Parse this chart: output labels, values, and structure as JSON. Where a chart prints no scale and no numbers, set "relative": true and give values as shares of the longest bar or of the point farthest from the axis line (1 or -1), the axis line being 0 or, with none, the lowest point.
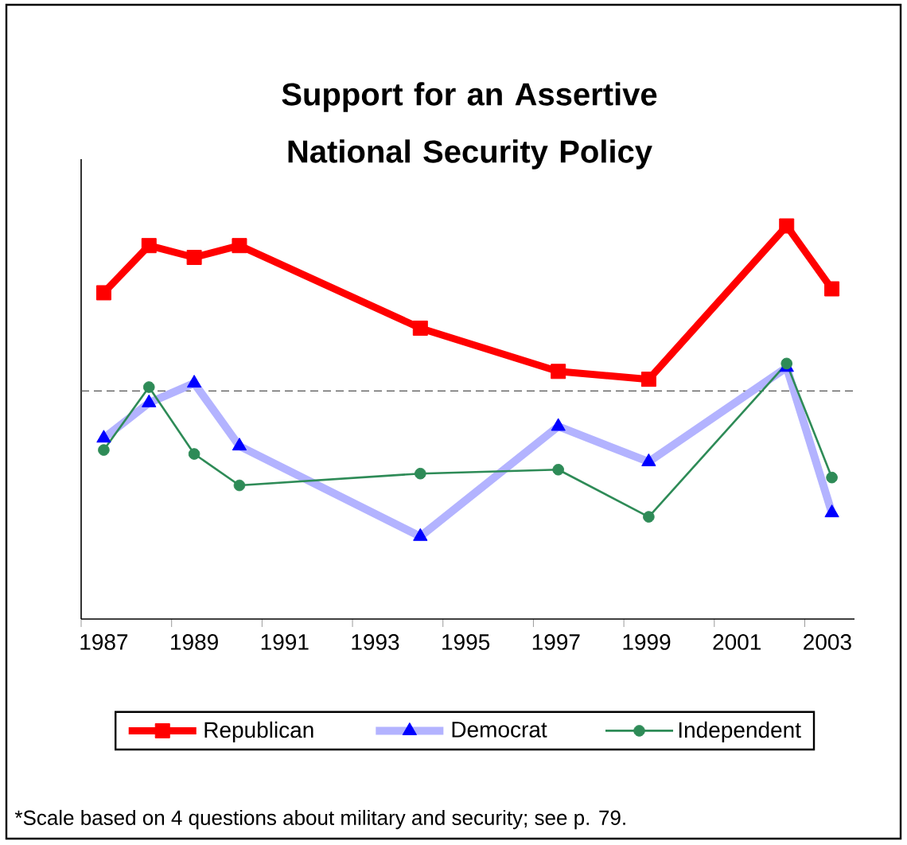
{
  "chart_data": {
    "type": "line",
    "title": "Support for an Assertive National Security Policy",
    "relative": true,
    "x": [
      1987,
      1988,
      1989,
      1990,
      1994,
      1997.05,
      1999.05,
      2002.1,
      2003.1
    ],
    "xlim": [
      1986.5,
      2003.6
    ],
    "xticks": [
      1987,
      1989,
      1991,
      1993,
      1995,
      1997,
      1999,
      2001,
      2003,
      {
        "value": 1986.5,
        "label": null
      },
      {
        "value": 1988.5,
        "label": null
      },
      {
        "value": 1990.5,
        "label": null
      },
      {
        "value": 1992.5,
        "label": null
      },
      {
        "value": 1994.5,
        "label": null
      },
      {
        "value": 1996.5,
        "label": null
      },
      {
        "value": 1998.5,
        "label": null
      },
      {
        "value": 2000.5,
        "label": null
      },
      {
        "value": 2002.5,
        "label": null
      }
    ],
    "series": [
      {
        "name": "Republican",
        "color": "#ff0000",
        "marker": "square",
        "values": [
          0.83,
          0.95,
          0.92,
          0.95,
          0.74,
          0.63,
          0.61,
          1,
          0.84
        ]
      },
      {
        "name": "Democrat",
        "color": "#b3b3ff",
        "marker": "triangle",
        "values": [
          0.46,
          0.55,
          0.6,
          0.44,
          0.21,
          0.49,
          0.4,
          0.64,
          0.27
        ]
      },
      {
        "name": "Independent",
        "color": "#2e8b57",
        "marker": "circle",
        "values": [
          0.43,
          0.59,
          0.42,
          0.34,
          0.37,
          0.38,
          0.26,
          0.65,
          0.36
        ]
      }
    ],
    "ref_lines": [
      {
        "axis": "y",
        "value": 0.58,
        "line_style": "dashed",
        "color": "#555555"
      }
    ],
    "legend": "bottom",
    "grid": false,
    "annotations": [
      "*Scale based on 4 questions about military and security; see p. 79."
    ]
  }
}
